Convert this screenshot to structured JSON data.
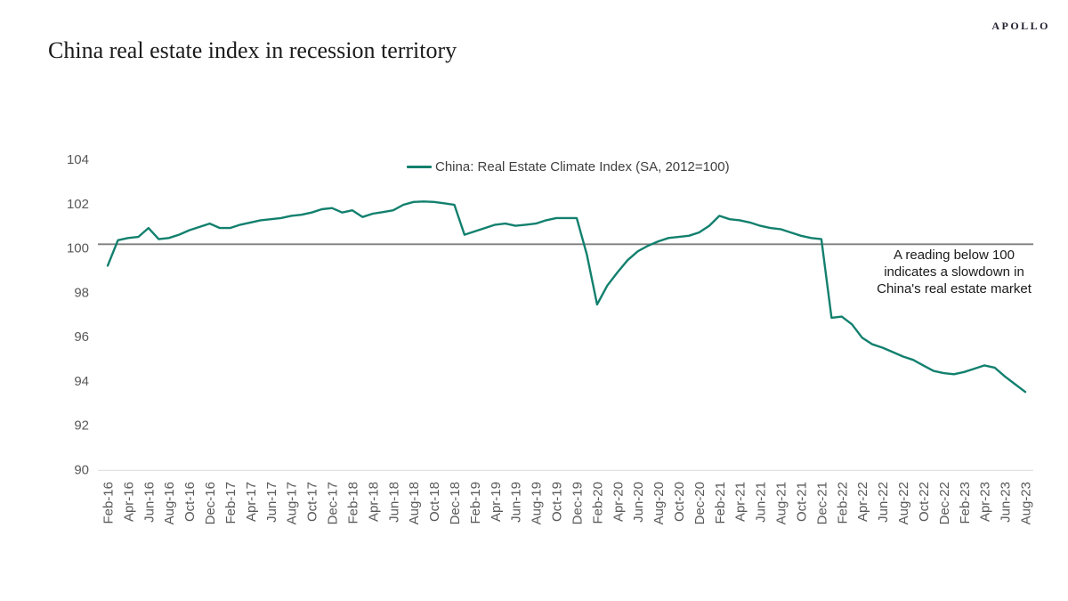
{
  "header": {
    "logo": "APOLLO",
    "title": "China real estate index in recession territory"
  },
  "chart_data": {
    "type": "line",
    "title": "China real estate index in recession territory",
    "legend_label": "China: Real Estate Climate Index (SA, 2012=100)",
    "legend_position": "top-center",
    "grid": "off",
    "ylim": [
      90,
      104
    ],
    "y_ticks": [
      104,
      102,
      100,
      98,
      96,
      94,
      92,
      90
    ],
    "x_tick_labels": [
      "Feb-16",
      "Apr-16",
      "Jun-16",
      "Aug-16",
      "Oct-16",
      "Dec-16",
      "Feb-17",
      "Apr-17",
      "Jun-17",
      "Aug-17",
      "Oct-17",
      "Dec-17",
      "Feb-18",
      "Apr-18",
      "Jun-18",
      "Aug-18",
      "Oct-18",
      "Dec-18",
      "Feb-19",
      "Apr-19",
      "Jun-19",
      "Aug-19",
      "Oct-19",
      "Dec-19",
      "Feb-20",
      "Apr-20",
      "Jun-20",
      "Aug-20",
      "Oct-20",
      "Dec-20",
      "Feb-21",
      "Apr-21",
      "Jun-21",
      "Aug-21",
      "Oct-21",
      "Dec-21",
      "Feb-22",
      "Apr-22",
      "Jun-22",
      "Aug-22",
      "Oct-22",
      "Dec-22",
      "Feb-23",
      "Apr-23",
      "Jun-23",
      "Aug-23"
    ],
    "reference_line": {
      "value": 100,
      "color": "#7f7f7f"
    },
    "annotation": "A reading below 100\nindicates a slowdown in\nChina's real estate market",
    "series": [
      {
        "name": "China: Real Estate Climate Index (SA, 2012=100)",
        "color": "#12806E",
        "frequency": "monthly",
        "start": "Feb-16",
        "end": "Aug-23",
        "values": [
          99.2,
          100.35,
          100.45,
          100.5,
          100.9,
          100.4,
          100.45,
          100.6,
          100.8,
          100.95,
          101.1,
          100.9,
          100.9,
          101.05,
          101.15,
          101.25,
          101.3,
          101.35,
          101.45,
          101.5,
          101.6,
          101.75,
          101.8,
          101.6,
          101.7,
          101.4,
          101.55,
          101.62,
          101.7,
          101.95,
          102.08,
          102.1,
          102.08,
          102.02,
          101.95,
          100.6,
          100.75,
          100.9,
          101.05,
          101.1,
          101.0,
          101.05,
          101.1,
          101.25,
          101.35,
          101.35,
          101.35,
          99.7,
          97.45,
          98.3,
          98.9,
          99.45,
          99.85,
          100.1,
          100.3,
          100.45,
          100.5,
          100.55,
          100.7,
          101.0,
          101.45,
          101.3,
          101.25,
          101.15,
          101.0,
          100.9,
          100.85,
          100.7,
          100.55,
          100.45,
          100.4,
          96.85,
          96.9,
          96.55,
          95.95,
          95.65,
          95.5,
          95.3,
          95.1,
          94.95,
          94.7,
          94.45,
          94.35,
          94.3,
          94.4,
          94.55,
          94.7,
          94.6,
          94.2,
          93.85,
          93.5
        ]
      }
    ],
    "axis_text_color": "#595959"
  }
}
